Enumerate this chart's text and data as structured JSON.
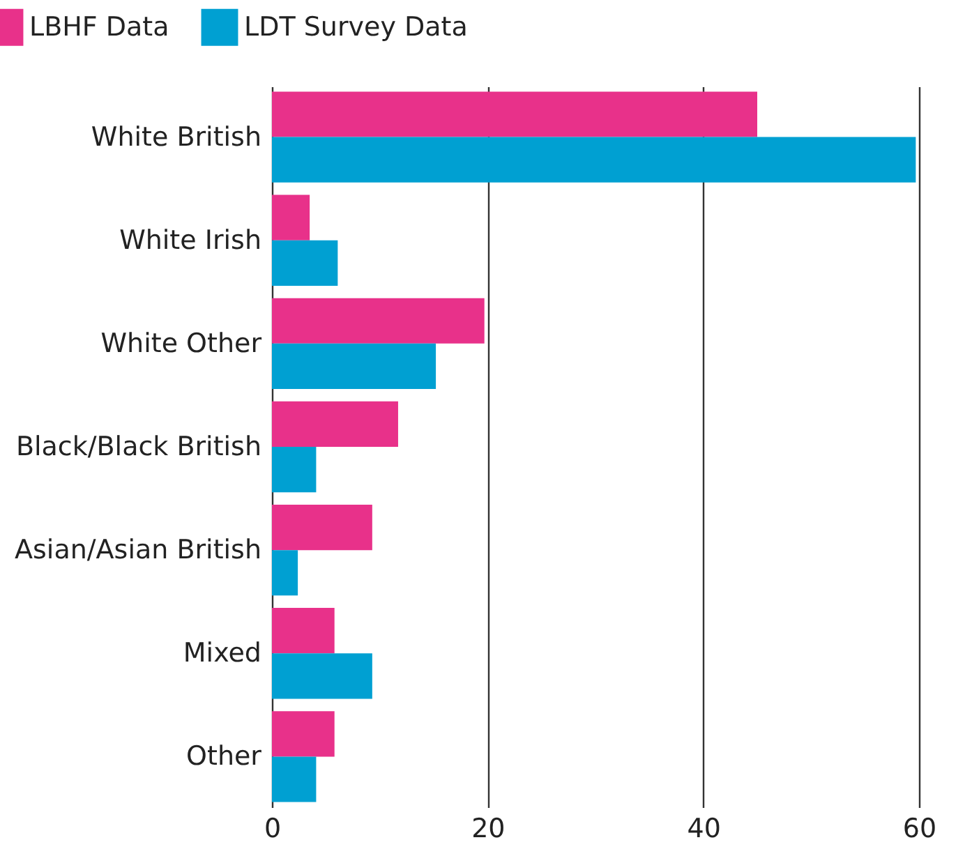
{
  "chart_data": {
    "type": "bar",
    "orientation": "horizontal",
    "categories": [
      "White British",
      "White Irish",
      "White Other",
      "Black/Black British",
      "Asian/Asian British",
      "Mixed",
      "Other"
    ],
    "series": [
      {
        "name": "LBHF Data",
        "color": "#e8318a",
        "values": [
          45,
          3.5,
          19.7,
          11.7,
          9.3,
          5.8,
          5.8
        ]
      },
      {
        "name": "LDT Survey Data",
        "color": "#00a0d2",
        "values": [
          59.7,
          6.1,
          15.2,
          4.1,
          2.4,
          9.3,
          4.1
        ]
      }
    ],
    "xlim": [
      0,
      60
    ],
    "xticks": [
      0,
      20,
      40,
      60
    ],
    "grid": "x",
    "legend": "top left"
  }
}
